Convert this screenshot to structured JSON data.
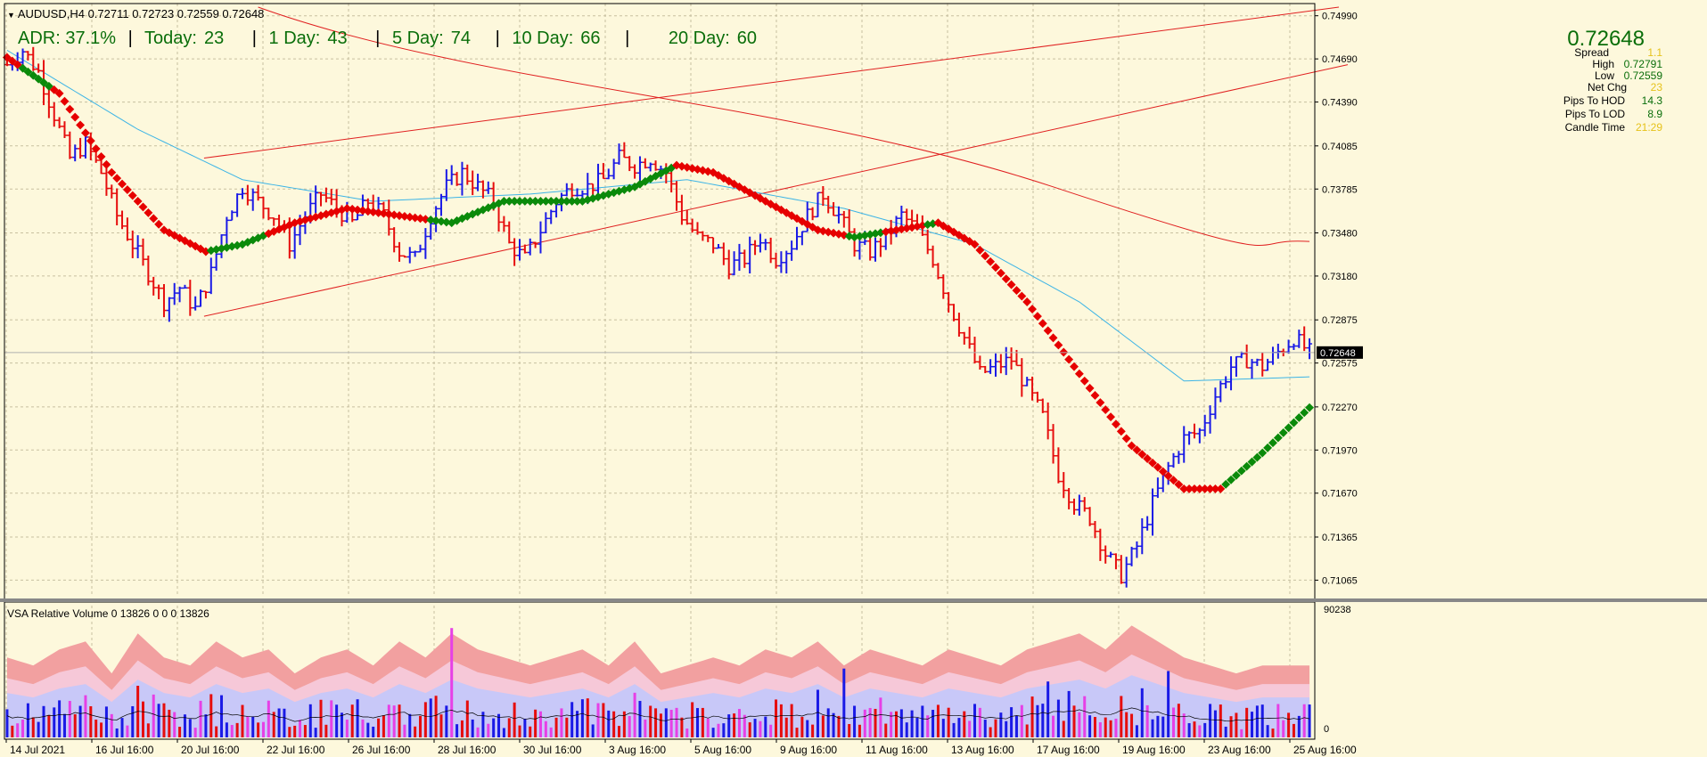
{
  "header": {
    "symbol_line": "AUDUSD,H4  0.72711 0.72723 0.72559 0.72648"
  },
  "adr": {
    "adr": "ADR: 37.1%",
    "today_label": "Today:",
    "today": "23",
    "d1_label": "1 Day:",
    "d1": "43",
    "d5_label": "5 Day:",
    "d5": "74",
    "d10_label": "10 Day:",
    "d10": "66",
    "d20_label": "20 Day:",
    "d20": "60"
  },
  "info": {
    "price": "0.72648",
    "spread_label": "Spread",
    "spread": "1.1",
    "high_label": "High",
    "high": "0.72791",
    "low_label": "Low",
    "low": "0.72559",
    "netchg_label": "Net Chg",
    "netchg": "23",
    "hod_label": "Pips To HOD",
    "hod": "14.3",
    "lod_label": "Pips To LOD",
    "lod": "8.9",
    "candle_label": "Candle Time",
    "candle": "21:29"
  },
  "price_axis": {
    "ticks": [
      "0.74990",
      "0.74690",
      "0.74390",
      "0.74085",
      "0.73785",
      "0.73480",
      "0.73180",
      "0.72875",
      "0.72575",
      "0.72270",
      "0.71970",
      "0.71670",
      "0.71365",
      "0.71065"
    ],
    "current_label": "0.72648"
  },
  "time_axis": [
    "14 Jul 2021",
    "16 Jul 16:00",
    "20 Jul 16:00",
    "22 Jul 16:00",
    "26 Jul 16:00",
    "28 Jul 16:00",
    "30 Jul 16:00",
    "3 Aug 16:00",
    "5 Aug 16:00",
    "9 Aug 16:00",
    "11 Aug 16:00",
    "13 Aug 16:00",
    "17 Aug 16:00",
    "19 Aug 16:00",
    "23 Aug 16:00",
    "25 Aug 16:00"
  ],
  "vsa": {
    "title": "VSA Relative Volume 0 13826 0 0 0 13826",
    "axis_top": "90238",
    "axis_bottom": "0"
  },
  "colors": {
    "bull": "#1a1ae6",
    "bear": "#e60d0d",
    "ma_blue": "#3cb4e6",
    "trend_up": "#0a8a0a",
    "trend_down": "#e60000",
    "channel": "#e02020"
  },
  "chart_data": {
    "type": "candlestick",
    "ylim": [
      0.7095,
      0.7505
    ],
    "anchors": [
      [
        0,
        0.7465
      ],
      [
        3,
        0.7475
      ],
      [
        6,
        0.746
      ],
      [
        9,
        0.743
      ],
      [
        12,
        0.74
      ],
      [
        15,
        0.741
      ],
      [
        18,
        0.739
      ],
      [
        21,
        0.736
      ],
      [
        24,
        0.734
      ],
      [
        27,
        0.732
      ],
      [
        30,
        0.73
      ],
      [
        33,
        0.731
      ],
      [
        36,
        0.7295
      ],
      [
        39,
        0.732
      ],
      [
        42,
        0.736
      ],
      [
        45,
        0.738
      ],
      [
        48,
        0.737
      ],
      [
        51,
        0.736
      ],
      [
        54,
        0.734
      ],
      [
        57,
        0.736
      ],
      [
        60,
        0.7375
      ],
      [
        63,
        0.7365
      ],
      [
        66,
        0.7355
      ],
      [
        69,
        0.737
      ],
      [
        72,
        0.736
      ],
      [
        75,
        0.7335
      ],
      [
        78,
        0.733
      ],
      [
        81,
        0.736
      ],
      [
        84,
        0.738
      ],
      [
        87,
        0.739
      ],
      [
        90,
        0.738
      ],
      [
        93,
        0.737
      ],
      [
        96,
        0.734
      ],
      [
        99,
        0.733
      ],
      [
        102,
        0.735
      ],
      [
        105,
        0.737
      ],
      [
        108,
        0.738
      ],
      [
        111,
        0.738
      ],
      [
        114,
        0.7385
      ],
      [
        117,
        0.74
      ],
      [
        120,
        0.7395
      ],
      [
        123,
        0.74
      ],
      [
        126,
        0.739
      ],
      [
        129,
        0.736
      ],
      [
        132,
        0.7345
      ],
      [
        135,
        0.734
      ],
      [
        138,
        0.7325
      ],
      [
        141,
        0.733
      ],
      [
        144,
        0.7345
      ],
      [
        147,
        0.733
      ],
      [
        150,
        0.734
      ],
      [
        153,
        0.736
      ],
      [
        156,
        0.7375
      ],
      [
        159,
        0.736
      ],
      [
        162,
        0.734
      ],
      [
        165,
        0.7335
      ],
      [
        168,
        0.7345
      ],
      [
        171,
        0.736
      ],
      [
        174,
        0.735
      ],
      [
        177,
        0.733
      ],
      [
        180,
        0.73
      ],
      [
        183,
        0.7275
      ],
      [
        186,
        0.725
      ],
      [
        189,
        0.7255
      ],
      [
        192,
        0.726
      ],
      [
        195,
        0.724
      ],
      [
        198,
        0.722
      ],
      [
        201,
        0.718
      ],
      [
        204,
        0.716
      ],
      [
        207,
        0.715
      ],
      [
        210,
        0.7125
      ],
      [
        213,
        0.711
      ],
      [
        216,
        0.713
      ],
      [
        219,
        0.716
      ],
      [
        222,
        0.7185
      ],
      [
        225,
        0.7205
      ],
      [
        228,
        0.721
      ],
      [
        231,
        0.7235
      ],
      [
        234,
        0.7255
      ],
      [
        237,
        0.726
      ],
      [
        240,
        0.7255
      ],
      [
        243,
        0.7265
      ],
      [
        246,
        0.7275
      ],
      [
        249,
        0.7265
      ]
    ],
    "n_bars": 250,
    "ma_blue": [
      [
        0,
        0.7475
      ],
      [
        25,
        0.742
      ],
      [
        45,
        0.7385
      ],
      [
        70,
        0.737
      ],
      [
        100,
        0.7375
      ],
      [
        130,
        0.7385
      ],
      [
        160,
        0.7365
      ],
      [
        185,
        0.734
      ],
      [
        205,
        0.73
      ],
      [
        225,
        0.7245
      ],
      [
        250,
        0.7248
      ]
    ],
    "trend_line": [
      [
        0,
        0.747
      ],
      [
        10,
        0.7445
      ],
      [
        20,
        0.739
      ],
      [
        30,
        0.735
      ],
      [
        38,
        0.7335
      ],
      [
        45,
        0.734
      ],
      [
        55,
        0.7355
      ],
      [
        65,
        0.7365
      ],
      [
        75,
        0.736
      ],
      [
        85,
        0.7355
      ],
      [
        95,
        0.737
      ],
      [
        110,
        0.737
      ],
      [
        120,
        0.738
      ],
      [
        128,
        0.7395
      ],
      [
        135,
        0.739
      ],
      [
        145,
        0.737
      ],
      [
        155,
        0.735
      ],
      [
        162,
        0.7345
      ],
      [
        170,
        0.735
      ],
      [
        178,
        0.7355
      ],
      [
        185,
        0.734
      ],
      [
        195,
        0.73
      ],
      [
        205,
        0.725
      ],
      [
        215,
        0.72
      ],
      [
        225,
        0.717
      ],
      [
        232,
        0.717
      ],
      [
        240,
        0.7195
      ],
      [
        250,
        0.723
      ]
    ],
    "trend_down_ranges": [
      [
        0,
        2
      ],
      [
        9,
        38
      ],
      [
        50,
        80
      ],
      [
        128,
        160
      ],
      [
        168,
        175
      ],
      [
        178,
        232
      ]
    ],
    "vsa_volume": [
      [
        0,
        0.5
      ],
      [
        5,
        0.45
      ],
      [
        10,
        0.55
      ],
      [
        15,
        0.6
      ],
      [
        20,
        0.4
      ],
      [
        25,
        0.65
      ],
      [
        30,
        0.5
      ],
      [
        35,
        0.45
      ],
      [
        40,
        0.6
      ],
      [
        45,
        0.5
      ],
      [
        50,
        0.55
      ],
      [
        55,
        0.4
      ],
      [
        60,
        0.5
      ],
      [
        65,
        0.55
      ],
      [
        70,
        0.45
      ],
      [
        75,
        0.6
      ],
      [
        80,
        0.5
      ],
      [
        85,
        0.65
      ],
      [
        90,
        0.55
      ],
      [
        95,
        0.5
      ],
      [
        100,
        0.45
      ],
      [
        105,
        0.5
      ],
      [
        110,
        0.55
      ],
      [
        115,
        0.45
      ],
      [
        120,
        0.6
      ],
      [
        125,
        0.4
      ],
      [
        130,
        0.45
      ],
      [
        135,
        0.5
      ],
      [
        140,
        0.45
      ],
      [
        145,
        0.55
      ],
      [
        150,
        0.5
      ],
      [
        155,
        0.6
      ],
      [
        160,
        0.45
      ],
      [
        165,
        0.55
      ],
      [
        170,
        0.5
      ],
      [
        175,
        0.45
      ],
      [
        180,
        0.55
      ],
      [
        185,
        0.5
      ],
      [
        190,
        0.45
      ],
      [
        195,
        0.55
      ],
      [
        200,
        0.6
      ],
      [
        205,
        0.65
      ],
      [
        210,
        0.55
      ],
      [
        215,
        0.7
      ],
      [
        220,
        0.6
      ],
      [
        225,
        0.5
      ],
      [
        230,
        0.45
      ],
      [
        235,
        0.4
      ],
      [
        240,
        0.45
      ],
      [
        249,
        0.45
      ]
    ]
  }
}
